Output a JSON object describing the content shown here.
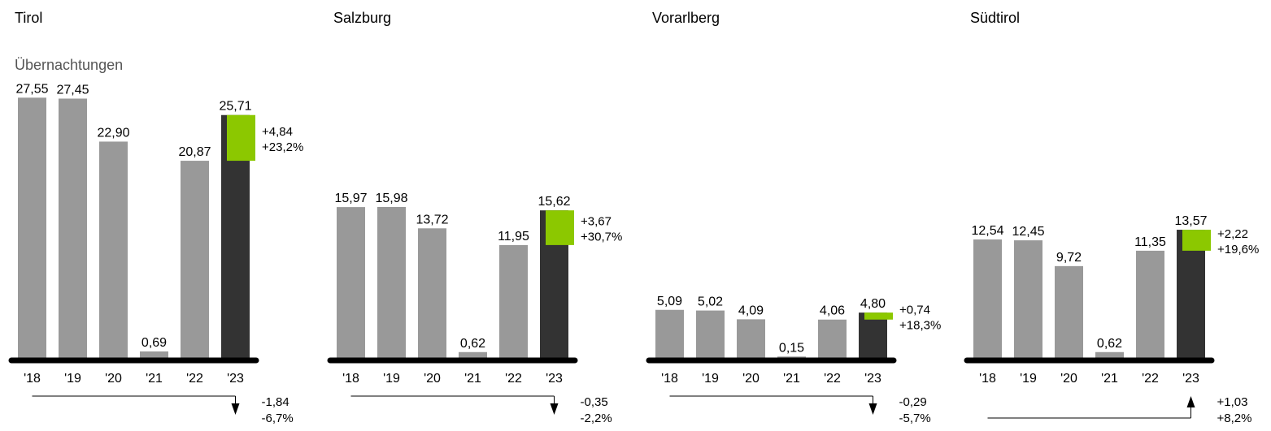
{
  "subtitle": "Übernachtungen",
  "colors": {
    "bar": "#999999",
    "highlight": "#333333",
    "positive": "#8cc800",
    "axis": "#000000",
    "text": "#000000"
  },
  "chart_data": [
    {
      "type": "bar",
      "title": "Tirol",
      "categories": [
        "'18",
        "'19",
        "'20",
        "'21",
        "'22",
        "'23"
      ],
      "values": [
        27.55,
        27.45,
        22.9,
        0.69,
        20.87,
        25.71
      ],
      "value_labels": [
        "27,55",
        "27,45",
        "22,90",
        "0,69",
        "20,87",
        "25,71"
      ],
      "delta_prev": {
        "value": "+4,84",
        "percent": "+23,2%",
        "direction": "up"
      },
      "delta_first": {
        "value": "-1,84",
        "percent": "-6,7%",
        "direction": "down"
      }
    },
    {
      "type": "bar",
      "title": "Salzburg",
      "categories": [
        "'18",
        "'19",
        "'20",
        "'21",
        "'22",
        "'23"
      ],
      "values": [
        15.97,
        15.98,
        13.72,
        0.62,
        11.95,
        15.62
      ],
      "value_labels": [
        "15,97",
        "15,98",
        "13,72",
        "0,62",
        "11,95",
        "15,62"
      ],
      "delta_prev": {
        "value": "+3,67",
        "percent": "+30,7%",
        "direction": "up"
      },
      "delta_first": {
        "value": "-0,35",
        "percent": "-2,2%",
        "direction": "down"
      }
    },
    {
      "type": "bar",
      "title": "Vorarlberg",
      "categories": [
        "'18",
        "'19",
        "'20",
        "'21",
        "'22",
        "'23"
      ],
      "values": [
        5.09,
        5.02,
        4.09,
        0.15,
        4.06,
        4.8
      ],
      "value_labels": [
        "5,09",
        "5,02",
        "4,09",
        "0,15",
        "4,06",
        "4,80"
      ],
      "delta_prev": {
        "value": "+0,74",
        "percent": "+18,3%",
        "direction": "up"
      },
      "delta_first": {
        "value": "-0,29",
        "percent": "-5,7%",
        "direction": "down"
      }
    },
    {
      "type": "bar",
      "title": "Südtirol",
      "categories": [
        "'18",
        "'19",
        "'20",
        "'21",
        "'22",
        "'23"
      ],
      "values": [
        12.54,
        12.45,
        9.72,
        0.62,
        11.35,
        13.57
      ],
      "value_labels": [
        "12,54",
        "12,45",
        "9,72",
        "0,62",
        "11,35",
        "13,57"
      ],
      "delta_prev": {
        "value": "+2,22",
        "percent": "+19,6%",
        "direction": "up"
      },
      "delta_first": {
        "value": "+1,03",
        "percent": "+8,2%",
        "direction": "up"
      }
    }
  ]
}
